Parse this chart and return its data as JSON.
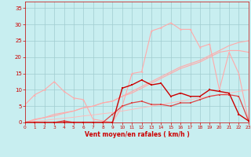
{
  "x": [
    0,
    1,
    2,
    3,
    4,
    5,
    6,
    7,
    8,
    9,
    10,
    11,
    12,
    13,
    14,
    15,
    16,
    17,
    18,
    19,
    20,
    21,
    22,
    23
  ],
  "line_dark1_y": [
    0,
    0,
    0,
    0,
    0,
    0,
    0,
    0,
    0,
    0,
    10.5,
    11.5,
    13,
    11.5,
    12,
    8,
    9,
    8,
    8,
    10,
    9.5,
    9,
    2.5,
    0.5
  ],
  "line_dark2_y": [
    0,
    0,
    0,
    0,
    0.5,
    0,
    0,
    0,
    0,
    2.5,
    5,
    6,
    6.5,
    5.5,
    5.5,
    5,
    6,
    6,
    7,
    8,
    8.5,
    8.5,
    8,
    0.5
  ],
  "line_light_jagged_y": [
    5.5,
    8.5,
    10,
    12.5,
    9.5,
    7.5,
    7,
    1,
    0.5,
    0,
    5,
    15,
    15.5,
    28,
    29,
    30.5,
    28.5,
    28.5,
    23,
    24,
    10,
    21.5,
    15,
    0.5
  ],
  "line_trend1_y": [
    0,
    1,
    1.5,
    2.5,
    3,
    3.5,
    4.5,
    5,
    6,
    6.5,
    8,
    9.5,
    11,
    12.5,
    14,
    15.5,
    17,
    18,
    19,
    20.5,
    22,
    23.5,
    24.5,
    25
  ],
  "line_trend2_y": [
    0,
    0.8,
    1.5,
    2,
    2.8,
    3.5,
    4.5,
    5,
    6,
    6.5,
    8,
    9,
    10.5,
    12,
    13.5,
    15,
    16.5,
    17.5,
    18.5,
    20,
    21.5,
    22,
    22,
    21.5
  ],
  "line_trend3_y": [
    0,
    0.3,
    0.6,
    1,
    1.3,
    1.6,
    2,
    2.3,
    2.7,
    3,
    3.5,
    4,
    4.5,
    5,
    5.5,
    6,
    6.5,
    7,
    7.5,
    8,
    8.5,
    9,
    9.5,
    10
  ],
  "bg_color": "#c8eef0",
  "grid_color": "#a0ccd0",
  "line_dark1_color": "#cc0000",
  "line_dark2_color": "#dd4444",
  "line_light_color": "#ffaaaa",
  "line_trend1_color": "#ffaaaa",
  "line_trend2_color": "#ffaaaa",
  "line_trend3_color": "#ffbbbb",
  "xlabel": "Vent moyen/en rafales ( km/h )",
  "xlim": [
    0,
    23
  ],
  "ylim": [
    0,
    37
  ],
  "yticks": [
    0,
    5,
    10,
    15,
    20,
    25,
    30,
    35
  ],
  "xticks": [
    0,
    1,
    2,
    3,
    4,
    5,
    6,
    7,
    8,
    9,
    10,
    11,
    12,
    13,
    14,
    15,
    16,
    17,
    18,
    19,
    20,
    21,
    22,
    23
  ]
}
